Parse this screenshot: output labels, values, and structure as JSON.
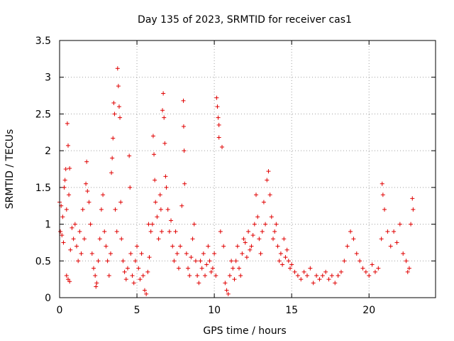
{
  "chart_data": {
    "type": "scatter",
    "title": "Day 135 of 2023, SRMTID for receiver cas1",
    "xlabel": "GPS time / hours",
    "ylabel": "SRMTID / TECUs",
    "xlim": [
      0,
      24.3
    ],
    "ylim": [
      0,
      3.5
    ],
    "xticks": [
      0,
      5,
      10,
      15,
      20
    ],
    "xtick_labels": [
      "0",
      "5",
      "10",
      "15",
      "20"
    ],
    "yticks": [
      0,
      0.5,
      1,
      1.5,
      2,
      2.5,
      3,
      3.5
    ],
    "ytick_labels": [
      "0",
      "0.5",
      "1",
      "1.5",
      "2",
      "2.5",
      "3",
      "3.5"
    ],
    "grid": true,
    "marker": "+",
    "color": "#e00000",
    "series": [
      {
        "name": "cas1",
        "points": [
          [
            0.0,
            1.3
          ],
          [
            0.05,
            0.9
          ],
          [
            0.1,
            1.25
          ],
          [
            0.15,
            0.85
          ],
          [
            0.2,
            1.1
          ],
          [
            0.25,
            0.75
          ],
          [
            0.3,
            1.5
          ],
          [
            0.35,
            1.6
          ],
          [
            0.4,
            1.75
          ],
          [
            0.45,
            1.2
          ],
          [
            0.5,
            2.37
          ],
          [
            0.55,
            2.07
          ],
          [
            0.6,
            1.4
          ],
          [
            0.65,
            1.76
          ],
          [
            0.7,
            0.65
          ],
          [
            0.45,
            0.3
          ],
          [
            0.55,
            0.25
          ],
          [
            0.65,
            0.22
          ],
          [
            0.8,
            0.95
          ],
          [
            0.9,
            0.8
          ],
          [
            1.0,
            1.0
          ],
          [
            1.1,
            0.7
          ],
          [
            1.2,
            0.5
          ],
          [
            1.3,
            0.9
          ],
          [
            1.4,
            0.6
          ],
          [
            1.5,
            1.2
          ],
          [
            1.6,
            0.8
          ],
          [
            1.7,
            1.55
          ],
          [
            1.75,
            1.85
          ],
          [
            1.8,
            1.45
          ],
          [
            1.9,
            1.3
          ],
          [
            2.0,
            1.0
          ],
          [
            2.1,
            0.6
          ],
          [
            2.2,
            0.4
          ],
          [
            2.3,
            0.3
          ],
          [
            2.35,
            0.15
          ],
          [
            2.4,
            0.2
          ],
          [
            2.5,
            0.5
          ],
          [
            2.6,
            0.8
          ],
          [
            2.7,
            1.2
          ],
          [
            2.8,
            1.4
          ],
          [
            2.9,
            0.9
          ],
          [
            3.0,
            0.7
          ],
          [
            3.1,
            0.5
          ],
          [
            3.2,
            0.3
          ],
          [
            3.3,
            0.6
          ],
          [
            3.35,
            1.7
          ],
          [
            3.4,
            1.9
          ],
          [
            3.45,
            2.17
          ],
          [
            3.5,
            2.65
          ],
          [
            3.55,
            2.5
          ],
          [
            3.6,
            1.2
          ],
          [
            3.7,
            0.9
          ],
          [
            3.75,
            3.12
          ],
          [
            3.8,
            2.88
          ],
          [
            3.85,
            2.6
          ],
          [
            3.9,
            2.45
          ],
          [
            3.95,
            1.3
          ],
          [
            4.0,
            0.8
          ],
          [
            4.1,
            0.5
          ],
          [
            4.2,
            0.35
          ],
          [
            4.3,
            0.25
          ],
          [
            4.4,
            0.4
          ],
          [
            4.5,
            1.93
          ],
          [
            4.55,
            1.5
          ],
          [
            4.6,
            0.6
          ],
          [
            4.7,
            0.3
          ],
          [
            4.8,
            0.2
          ],
          [
            4.9,
            0.5
          ],
          [
            5.0,
            0.7
          ],
          [
            5.1,
            0.4
          ],
          [
            5.2,
            0.25
          ],
          [
            5.3,
            0.6
          ],
          [
            5.4,
            0.3
          ],
          [
            5.5,
            0.1
          ],
          [
            5.6,
            0.05
          ],
          [
            5.7,
            0.35
          ],
          [
            5.75,
            1.0
          ],
          [
            5.8,
            0.55
          ],
          [
            5.9,
            0.9
          ],
          [
            6.0,
            1.0
          ],
          [
            6.05,
            2.2
          ],
          [
            6.1,
            1.95
          ],
          [
            6.15,
            1.6
          ],
          [
            6.2,
            1.3
          ],
          [
            6.3,
            1.1
          ],
          [
            6.4,
            0.8
          ],
          [
            6.5,
            1.4
          ],
          [
            6.55,
            1.2
          ],
          [
            6.6,
            0.9
          ],
          [
            6.65,
            2.55
          ],
          [
            6.7,
            2.78
          ],
          [
            6.75,
            2.45
          ],
          [
            6.8,
            2.1
          ],
          [
            6.85,
            1.65
          ],
          [
            6.9,
            1.5
          ],
          [
            7.0,
            1.2
          ],
          [
            7.1,
            0.9
          ],
          [
            7.2,
            1.05
          ],
          [
            7.3,
            0.7
          ],
          [
            7.4,
            0.5
          ],
          [
            7.5,
            0.9
          ],
          [
            7.6,
            0.6
          ],
          [
            7.7,
            0.4
          ],
          [
            7.8,
            0.7
          ],
          [
            7.9,
            1.25
          ],
          [
            8.0,
            2.68
          ],
          [
            8.02,
            2.33
          ],
          [
            8.05,
            2.0
          ],
          [
            8.08,
            1.55
          ],
          [
            8.2,
            0.6
          ],
          [
            8.3,
            0.4
          ],
          [
            8.4,
            0.3
          ],
          [
            8.5,
            0.55
          ],
          [
            8.6,
            0.8
          ],
          [
            8.7,
            1.0
          ],
          [
            8.8,
            0.5
          ],
          [
            8.9,
            0.3
          ],
          [
            9.0,
            0.2
          ],
          [
            9.1,
            0.5
          ],
          [
            9.2,
            0.4
          ],
          [
            9.3,
            0.6
          ],
          [
            9.4,
            0.3
          ],
          [
            9.5,
            0.45
          ],
          [
            9.6,
            0.7
          ],
          [
            9.7,
            0.5
          ],
          [
            9.8,
            0.35
          ],
          [
            9.9,
            0.4
          ],
          [
            10.0,
            0.6
          ],
          [
            10.1,
            0.3
          ],
          [
            10.15,
            2.72
          ],
          [
            10.2,
            2.6
          ],
          [
            10.25,
            2.45
          ],
          [
            10.3,
            2.35
          ],
          [
            10.3,
            2.18
          ],
          [
            10.4,
            0.9
          ],
          [
            10.5,
            2.05
          ],
          [
            10.6,
            0.7
          ],
          [
            10.7,
            0.2
          ],
          [
            10.8,
            0.1
          ],
          [
            10.9,
            0.05
          ],
          [
            11.0,
            0.3
          ],
          [
            11.1,
            0.5
          ],
          [
            11.2,
            0.4
          ],
          [
            11.3,
            0.25
          ],
          [
            11.4,
            0.5
          ],
          [
            11.5,
            0.7
          ],
          [
            11.6,
            0.4
          ],
          [
            11.7,
            0.3
          ],
          [
            11.8,
            0.6
          ],
          [
            11.9,
            0.8
          ],
          [
            12.0,
            0.75
          ],
          [
            12.1,
            0.55
          ],
          [
            12.2,
            0.9
          ],
          [
            12.3,
            0.65
          ],
          [
            12.4,
            0.7
          ],
          [
            12.5,
            0.85
          ],
          [
            12.6,
            1.0
          ],
          [
            12.7,
            1.4
          ],
          [
            12.8,
            1.1
          ],
          [
            12.9,
            0.8
          ],
          [
            13.0,
            0.6
          ],
          [
            13.1,
            0.9
          ],
          [
            13.2,
            1.3
          ],
          [
            13.3,
            1.0
          ],
          [
            13.4,
            1.6
          ],
          [
            13.5,
            1.72
          ],
          [
            13.6,
            1.4
          ],
          [
            13.7,
            1.1
          ],
          [
            13.8,
            0.8
          ],
          [
            13.9,
            0.9
          ],
          [
            14.0,
            1.0
          ],
          [
            14.1,
            0.7
          ],
          [
            14.2,
            0.5
          ],
          [
            14.3,
            0.6
          ],
          [
            14.4,
            0.45
          ],
          [
            14.5,
            0.8
          ],
          [
            14.6,
            0.55
          ],
          [
            14.7,
            0.65
          ],
          [
            14.8,
            0.5
          ],
          [
            14.9,
            0.4
          ],
          [
            15.0,
            0.45
          ],
          [
            15.2,
            0.35
          ],
          [
            15.4,
            0.3
          ],
          [
            15.6,
            0.25
          ],
          [
            15.8,
            0.35
          ],
          [
            16.0,
            0.3
          ],
          [
            16.2,
            0.4
          ],
          [
            16.4,
            0.2
          ],
          [
            16.6,
            0.3
          ],
          [
            16.8,
            0.25
          ],
          [
            17.0,
            0.3
          ],
          [
            17.2,
            0.35
          ],
          [
            17.4,
            0.25
          ],
          [
            17.6,
            0.3
          ],
          [
            17.8,
            0.2
          ],
          [
            18.0,
            0.3
          ],
          [
            18.2,
            0.35
          ],
          [
            18.4,
            0.5
          ],
          [
            18.6,
            0.7
          ],
          [
            18.8,
            0.9
          ],
          [
            19.0,
            0.8
          ],
          [
            19.2,
            0.6
          ],
          [
            19.4,
            0.5
          ],
          [
            19.6,
            0.4
          ],
          [
            19.8,
            0.35
          ],
          [
            20.0,
            0.3
          ],
          [
            20.2,
            0.45
          ],
          [
            20.4,
            0.35
          ],
          [
            20.6,
            0.4
          ],
          [
            20.8,
            0.8
          ],
          [
            20.85,
            1.55
          ],
          [
            20.9,
            1.4
          ],
          [
            21.0,
            1.2
          ],
          [
            21.2,
            0.9
          ],
          [
            21.4,
            0.7
          ],
          [
            21.6,
            0.9
          ],
          [
            21.8,
            0.75
          ],
          [
            22.0,
            1.0
          ],
          [
            22.2,
            0.6
          ],
          [
            22.4,
            0.5
          ],
          [
            22.5,
            0.35
          ],
          [
            22.6,
            0.4
          ],
          [
            22.7,
            1.0
          ],
          [
            22.8,
            1.35
          ],
          [
            22.85,
            1.2
          ]
        ]
      }
    ]
  }
}
